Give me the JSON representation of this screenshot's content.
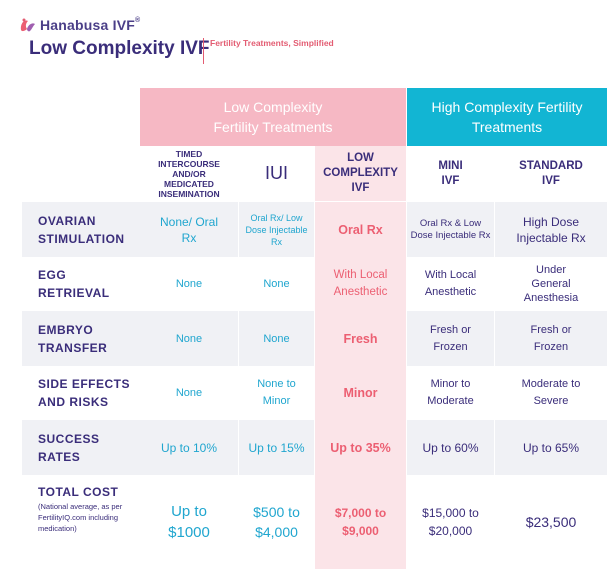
{
  "header": {
    "brand": "Hanabusa IVF",
    "brand_reg": "®",
    "title": "Low Complexity IVF",
    "tagline": "Fertility Treatments, Simplified"
  },
  "groups": {
    "low": "Low Complexity Fertility Treatments",
    "high": "High Complexity Fertility Treatments"
  },
  "columns": [
    "TIMED INTERCOURSE AND/OR MEDICATED INSEMINATION",
    "IUI",
    "LOW COMPLEXITY IVF",
    "MINI IVF",
    "STANDARD IVF"
  ],
  "rows": [
    {
      "label": "OVARIAN STIMULATION",
      "values": [
        "None/ Oral Rx",
        "Oral Rx/ Low Dose Injectable Rx",
        "Oral Rx",
        "Oral Rx & Low Dose Injectable Rx",
        "High Dose Injectable Rx"
      ]
    },
    {
      "label": "EGG RETRIEVAL",
      "values": [
        "None",
        "None",
        "With Local Anesthetic",
        "With Local Anesthetic",
        "Under General Anesthesia"
      ]
    },
    {
      "label": "EMBRYO TRANSFER",
      "values": [
        "None",
        "None",
        "Fresh",
        "Fresh or Frozen",
        "Fresh or Frozen"
      ]
    },
    {
      "label": "SIDE EFFECTS AND RISKS",
      "values": [
        "None",
        "None to Minor",
        "Minor",
        "Minor to Moderate",
        "Moderate to Severe"
      ]
    },
    {
      "label": "SUCCESS RATES",
      "values": [
        "Up to 10%",
        "Up to 15%",
        "Up to 35%",
        "Up to 60%",
        "Up to 65%"
      ]
    },
    {
      "label": "TOTAL COST",
      "note": "(National average, as per FertilityIQ.com including medication)",
      "values": [
        "Up to $1000",
        "$500 to $4,000",
        "$7,000 to $9,000",
        "$15,000 to $20,000",
        "$23,500"
      ]
    }
  ],
  "colors": {
    "navy": "#3a2d7a",
    "pink": "#f6b8c4",
    "teal": "#12b5d3",
    "coral": "#ec5f72",
    "blue": "#20a6cf"
  }
}
